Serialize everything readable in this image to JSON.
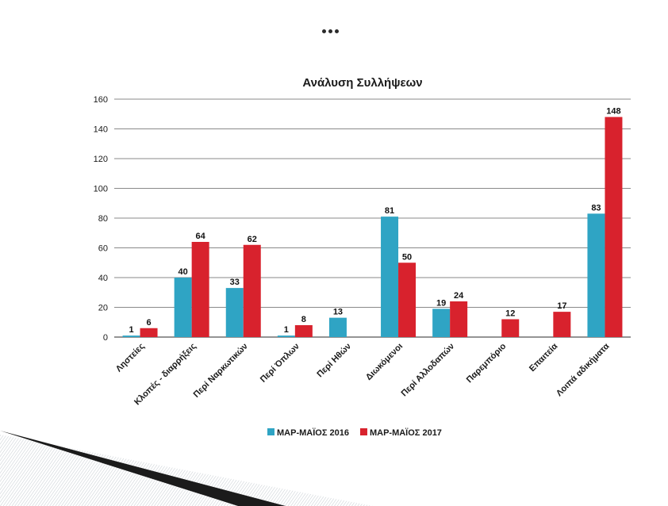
{
  "chart_data": {
    "type": "bar",
    "title": "Ανάλυση Συλλήψεων",
    "xlabel": "",
    "ylabel": "",
    "ylim": [
      0,
      160
    ],
    "yticks": [
      0,
      20,
      40,
      60,
      80,
      100,
      120,
      140,
      160
    ],
    "grid": true,
    "legend_position": "bottom",
    "categories": [
      "Ληστείες",
      "Κλοπές - διαρρήξεις",
      "Περί Ναρκωτικών",
      "Περί Όπλων",
      "Περί Ηθών",
      "Διωκόμενοι",
      "Περί Αλλοδαπών",
      "Παρεμπόριο",
      "Επαιτεία",
      "Λοιπά αδικήματα"
    ],
    "series": [
      {
        "name": "ΜΑΡ-ΜΑΪΟΣ 2016",
        "color": "#2fa4c4",
        "values": [
          1,
          40,
          33,
          1,
          13,
          81,
          19,
          null,
          null,
          83
        ]
      },
      {
        "name": "ΜΑΡ-ΜΑΪΟΣ 2017",
        "color": "#d8222d",
        "values": [
          6,
          64,
          62,
          8,
          null,
          50,
          24,
          12,
          17,
          148
        ]
      }
    ]
  }
}
